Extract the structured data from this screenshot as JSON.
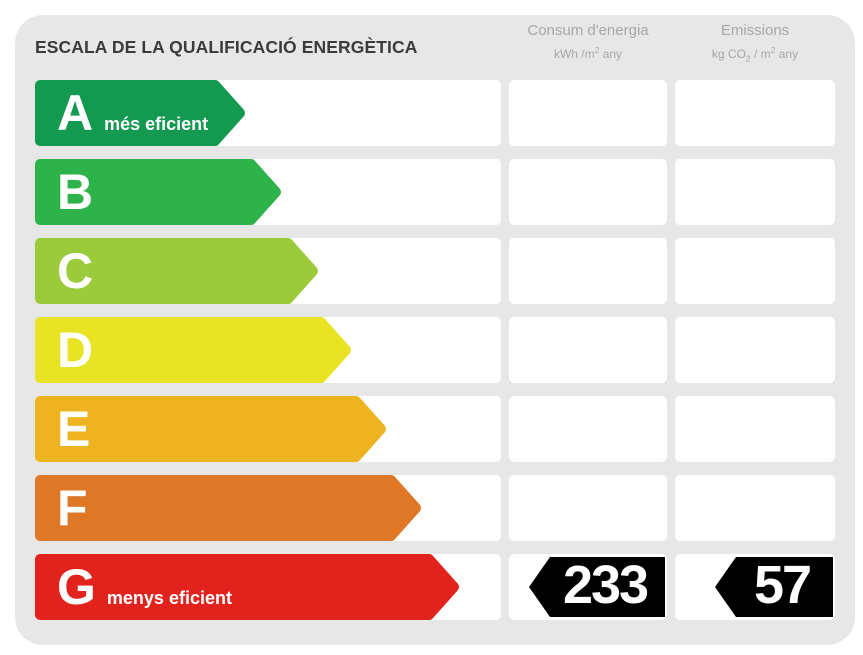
{
  "header": {
    "title": "ESCALA DE LA QUALIFICACIÓ ENERGÈTICA",
    "consum": {
      "label": "Consum d'energia",
      "unit_pre": "kWh /m",
      "unit_sup": "2",
      "unit_post": " any"
    },
    "emissions": {
      "label": "Emissions",
      "unit_pre": "kg CO",
      "unit_sub": "2",
      "unit_mid": " / m",
      "unit_sup": "2",
      "unit_post": " any"
    }
  },
  "scale": {
    "rows": [
      {
        "letter": "A",
        "note": "més eficient",
        "color": "#149a50",
        "arrow_width": 210
      },
      {
        "letter": "B",
        "note": "",
        "color": "#2eb34b",
        "arrow_width": 246
      },
      {
        "letter": "C",
        "note": "",
        "color": "#9bca3b",
        "arrow_width": 283
      },
      {
        "letter": "D",
        "note": "",
        "color": "#e8e424",
        "arrow_width": 316
      },
      {
        "letter": "E",
        "note": "",
        "color": "#edb320",
        "arrow_width": 351
      },
      {
        "letter": "F",
        "note": "",
        "color": "#de7827",
        "arrow_width": 386
      },
      {
        "letter": "G",
        "note": "menys eficient",
        "color": "#e2231d",
        "arrow_width": 424
      }
    ]
  },
  "rating": {
    "grade": "G",
    "consum_value": "233",
    "emissions_value": "57",
    "badge_color": "#000000"
  },
  "colors": {
    "card_bg": "#e7e7e8",
    "cell_bg": "#ffffff",
    "title_text": "#3b3b3d",
    "header_text": "#a7a7aa"
  },
  "chart_data": {
    "type": "bar",
    "title": "ESCALA DE LA QUALIFICACIÓ ENERGÈTICA",
    "categories": [
      "A",
      "B",
      "C",
      "D",
      "E",
      "F",
      "G"
    ],
    "category_notes": {
      "A": "més eficient",
      "G": "menys eficient"
    },
    "bar_colors": [
      "#149a50",
      "#2eb34b",
      "#9bca3b",
      "#e8e424",
      "#edb320",
      "#de7827",
      "#e2231d"
    ],
    "bar_relative_lengths": [
      210,
      246,
      283,
      316,
      351,
      386,
      424
    ],
    "columns": [
      {
        "name": "Consum d'energia",
        "unit": "kWh/m² any"
      },
      {
        "name": "Emissions",
        "unit": "kg CO₂/m² any"
      }
    ],
    "values": {
      "grade": "G",
      "consum": 233,
      "emissions": 57
    },
    "legend_position": "none",
    "grid": false
  }
}
